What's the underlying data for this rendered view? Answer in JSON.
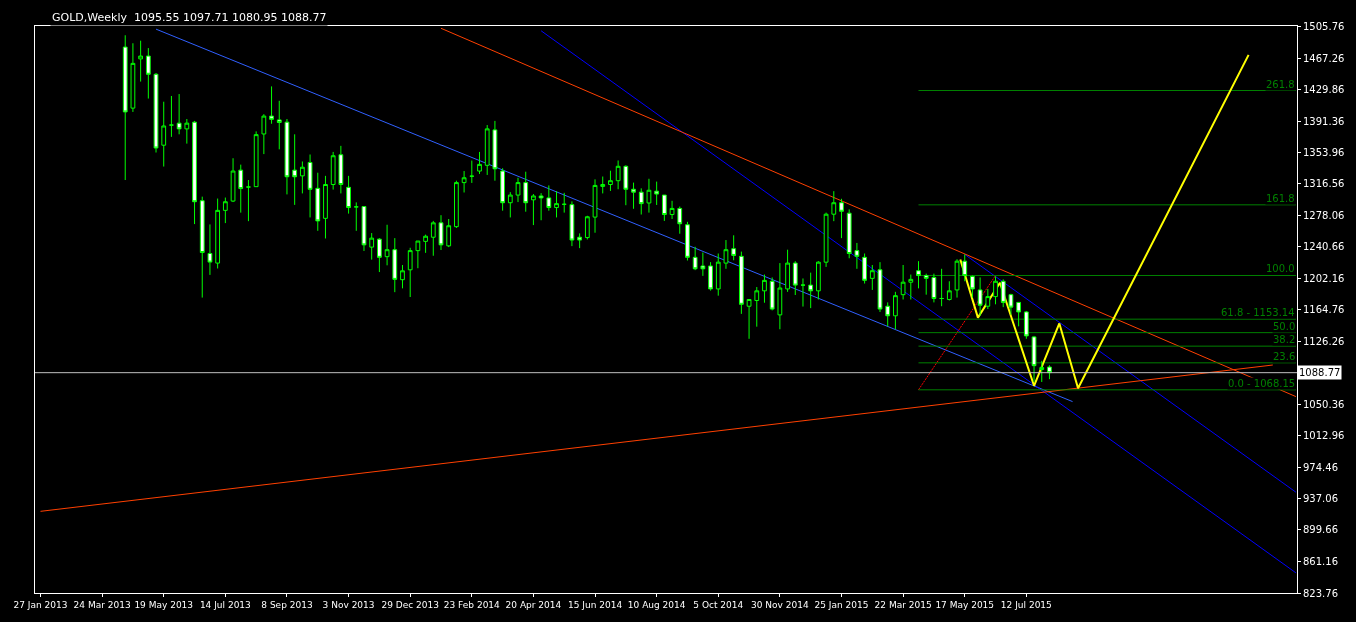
{
  "chart_data": {
    "type": "candlestick",
    "title": "GOLD,Weekly  1095.55 1097.71 1080.95 1088.77",
    "color": "#00ff00",
    "x": [
      "2013-04-14",
      "2013-04-21",
      "2013-04-28",
      "2013-05-05",
      "2013-05-12",
      "2013-05-19",
      "2013-05-26",
      "2013-06-02",
      "2013-06-09",
      "2013-06-16",
      "2013-06-23",
      "2013-06-30",
      "2013-07-07",
      "2013-07-14",
      "2013-07-21",
      "2013-07-28",
      "2013-08-04",
      "2013-08-11",
      "2013-08-18",
      "2013-08-25",
      "2013-09-01",
      "2013-09-08",
      "2013-09-15",
      "2013-09-22",
      "2013-09-29",
      "2013-10-06",
      "2013-10-13",
      "2013-10-20",
      "2013-10-27",
      "2013-11-03",
      "2013-11-10",
      "2013-11-17",
      "2013-11-24",
      "2013-12-01",
      "2013-12-08",
      "2013-12-15",
      "2013-12-22",
      "2013-12-29",
      "2014-01-05",
      "2014-01-12",
      "2014-01-19",
      "2014-01-26",
      "2014-02-02",
      "2014-02-09",
      "2014-02-16",
      "2014-02-23",
      "2014-03-02",
      "2014-03-09",
      "2014-03-16",
      "2014-03-23",
      "2014-03-30",
      "2014-04-06",
      "2014-04-13",
      "2014-04-20",
      "2014-04-27",
      "2014-05-04",
      "2014-05-11",
      "2014-05-18",
      "2014-05-25",
      "2014-06-01",
      "2014-06-08",
      "2014-06-15",
      "2014-06-22",
      "2014-06-29",
      "2014-07-06",
      "2014-07-13",
      "2014-07-20",
      "2014-07-27",
      "2014-08-03",
      "2014-08-10",
      "2014-08-17",
      "2014-08-24",
      "2014-08-31",
      "2014-09-07",
      "2014-09-14",
      "2014-09-21",
      "2014-09-28",
      "2014-10-05",
      "2014-10-12",
      "2014-10-19",
      "2014-10-26",
      "2014-11-02",
      "2014-11-09",
      "2014-11-16",
      "2014-11-23",
      "2014-11-30",
      "2014-12-07",
      "2014-12-14",
      "2014-12-21",
      "2014-12-28",
      "2015-01-04",
      "2015-01-11",
      "2015-01-18",
      "2015-01-25",
      "2015-02-01",
      "2015-02-08",
      "2015-02-15",
      "2015-02-22",
      "2015-03-01",
      "2015-03-08",
      "2015-03-15",
      "2015-03-22",
      "2015-03-29",
      "2015-04-05",
      "2015-04-12",
      "2015-04-19",
      "2015-04-26",
      "2015-05-03",
      "2015-05-10",
      "2015-05-17",
      "2015-05-24",
      "2015-05-31",
      "2015-06-07",
      "2015-06-14",
      "2015-06-21",
      "2015-06-28",
      "2015-07-05",
      "2015-07-12",
      "2015-07-19",
      "2015-07-26",
      "2015-08-02"
    ],
    "ohlc": [
      [
        1480.4,
        1494.6,
        1320.5,
        1402.4
      ],
      [
        1407,
        1485,
        1402.4,
        1460.8
      ],
      [
        1466.2,
        1488.1,
        1438.9,
        1469.6
      ],
      [
        1469.6,
        1479.2,
        1418.5,
        1447.7
      ],
      [
        1447.7,
        1449.3,
        1353.6,
        1359
      ],
      [
        1362.4,
        1414.7,
        1336.7,
        1385.5
      ],
      [
        1386.6,
        1421.6,
        1372.4,
        1386.6
      ],
      [
        1388.9,
        1423.9,
        1375.5,
        1382
      ],
      [
        1382,
        1393.9,
        1364.3,
        1388.9
      ],
      [
        1390.1,
        1391.6,
        1267.5,
        1294.4
      ],
      [
        1295.6,
        1300.5,
        1179.1,
        1233.3
      ],
      [
        1232.1,
        1267.1,
        1206.4,
        1221.8
      ],
      [
        1220.6,
        1298.2,
        1214.1,
        1284
      ],
      [
        1284,
        1299.4,
        1268.7,
        1294.4
      ],
      [
        1295.2,
        1346.7,
        1294,
        1331.3
      ],
      [
        1332.4,
        1339,
        1281.3,
        1310.2
      ],
      [
        1312.1,
        1320.5,
        1271,
        1312.1
      ],
      [
        1312.5,
        1379,
        1312.5,
        1375.1
      ],
      [
        1375.9,
        1399.7,
        1351.7,
        1397.4
      ],
      [
        1397.4,
        1433.1,
        1388.2,
        1393.5
      ],
      [
        1392.8,
        1415.8,
        1357.4,
        1389.7
      ],
      [
        1390.1,
        1393.9,
        1303.2,
        1324.4
      ],
      [
        1332.4,
        1375.5,
        1290.6,
        1324.4
      ],
      [
        1325.5,
        1342.8,
        1304.4,
        1335.9
      ],
      [
        1341.6,
        1351.2,
        1275.5,
        1309.3
      ],
      [
        1310.5,
        1329.3,
        1259.4,
        1271.3
      ],
      [
        1274.4,
        1325.5,
        1250.2,
        1315.1
      ],
      [
        1315.1,
        1354.3,
        1309,
        1349.7
      ],
      [
        1350.9,
        1361.6,
        1304.4,
        1315.1
      ],
      [
        1311.7,
        1325.5,
        1280.1,
        1287.4
      ],
      [
        1288.2,
        1293.6,
        1259.4,
        1288.2
      ],
      [
        1288.6,
        1288.6,
        1235.2,
        1242.5
      ],
      [
        1239.8,
        1256.7,
        1224.8,
        1250.6
      ],
      [
        1249.4,
        1250.6,
        1209.8,
        1227.5
      ],
      [
        1228.3,
        1266.7,
        1217.9,
        1236.7
      ],
      [
        1236.7,
        1250.6,
        1185.6,
        1201
      ],
      [
        1200.6,
        1218.3,
        1190.2,
        1211.3
      ],
      [
        1212.5,
        1239,
        1179.8,
        1235.6
      ],
      [
        1235.6,
        1247.1,
        1214.4,
        1247.1
      ],
      [
        1246.7,
        1254.8,
        1232.9,
        1252.9
      ],
      [
        1251.7,
        1271.3,
        1229.4,
        1269
      ],
      [
        1269,
        1278.2,
        1236.3,
        1242.5
      ],
      [
        1241.3,
        1273.6,
        1239.8,
        1265.5
      ],
      [
        1264.4,
        1319.7,
        1262.8,
        1317.4
      ],
      [
        1317.4,
        1331.3,
        1305.5,
        1323.2
      ],
      [
        1325.1,
        1343.9,
        1317,
        1325.1
      ],
      [
        1331.3,
        1354.3,
        1327.8,
        1339.3
      ],
      [
        1338.2,
        1386.6,
        1326.6,
        1382
      ],
      [
        1380.8,
        1391.6,
        1319.7,
        1334
      ],
      [
        1331.3,
        1334.7,
        1283.6,
        1293.2
      ],
      [
        1293.2,
        1305.9,
        1275.5,
        1302.4
      ],
      [
        1302.4,
        1323.2,
        1294,
        1317.4
      ],
      [
        1317.4,
        1330.5,
        1282.4,
        1293.2
      ],
      [
        1296.7,
        1303.6,
        1266.3,
        1301.3
      ],
      [
        1301.3,
        1304.7,
        1272.1,
        1299
      ],
      [
        1299,
        1314,
        1283.6,
        1287.4
      ],
      [
        1287.4,
        1307.1,
        1275.5,
        1292.1
      ],
      [
        1291.3,
        1305.1,
        1281.3,
        1291.3
      ],
      [
        1290.9,
        1294.8,
        1241,
        1248.3
      ],
      [
        1251.7,
        1256.3,
        1238.6,
        1248.3
      ],
      [
        1251.3,
        1277.5,
        1249,
        1276.3
      ],
      [
        1275.9,
        1321.3,
        1257.1,
        1314
      ],
      [
        1312.8,
        1324.7,
        1304.4,
        1315.1
      ],
      [
        1315.1,
        1331.7,
        1307.4,
        1319.7
      ],
      [
        1319.7,
        1344,
        1309.4,
        1337
      ],
      [
        1337,
        1338.2,
        1290.2,
        1309.4
      ],
      [
        1309.4,
        1317.4,
        1285.9,
        1305.9
      ],
      [
        1305.9,
        1310.5,
        1279,
        1292.1
      ],
      [
        1292.9,
        1322,
        1281.3,
        1308.2
      ],
      [
        1307.1,
        1318.6,
        1290.5,
        1303.6
      ],
      [
        1302.4,
        1302.4,
        1271.3,
        1279
      ],
      [
        1279,
        1295.5,
        1273.6,
        1286.3
      ],
      [
        1286.3,
        1288.6,
        1255.9,
        1267.9
      ],
      [
        1266.7,
        1270.2,
        1223.7,
        1227.5
      ],
      [
        1227.5,
        1240.2,
        1212.1,
        1213.7
      ],
      [
        1217.1,
        1233.3,
        1205.2,
        1213.7
      ],
      [
        1217.1,
        1221.7,
        1187.5,
        1189.5
      ],
      [
        1189.5,
        1232.1,
        1181.4,
        1221.7
      ],
      [
        1220.6,
        1248.3,
        1213.7,
        1236.7
      ],
      [
        1237.9,
        1254,
        1224,
        1229.8
      ],
      [
        1228.7,
        1234.4,
        1159.5,
        1171
      ],
      [
        1168.7,
        1176.8,
        1129.5,
        1176.8
      ],
      [
        1175.6,
        1191.8,
        1144.1,
        1187.2
      ],
      [
        1187.2,
        1206.8,
        1172.9,
        1199.8
      ],
      [
        1198.7,
        1203.3,
        1163.7,
        1165.3
      ],
      [
        1158.3,
        1220.6,
        1141,
        1190.6
      ],
      [
        1189.5,
        1236.7,
        1186,
        1220.6
      ],
      [
        1220.6,
        1222.9,
        1182.2,
        1194.1
      ],
      [
        1194.1,
        1202.1,
        1168.3,
        1194.1
      ],
      [
        1194.1,
        1209.1,
        1166.4,
        1187.2
      ],
      [
        1187.2,
        1222.9,
        1176.8,
        1221.7
      ],
      [
        1221.7,
        1281.3,
        1216,
        1279.4
      ],
      [
        1279.4,
        1307.1,
        1271,
        1293.2
      ],
      [
        1293.2,
        1297.9,
        1250.6,
        1282.9
      ],
      [
        1280.6,
        1285.2,
        1226.4,
        1232.1
      ],
      [
        1235.6,
        1244.8,
        1213.7,
        1228.7
      ],
      [
        1227.5,
        1232.1,
        1196,
        1199.9
      ],
      [
        1202.2,
        1218.3,
        1188.3,
        1211.4
      ],
      [
        1212.5,
        1221.7,
        1161.8,
        1165.3
      ],
      [
        1168.7,
        1173.3,
        1144.5,
        1157.2
      ],
      [
        1157.2,
        1186,
        1141.1,
        1181.4
      ],
      [
        1182.6,
        1218.3,
        1176.8,
        1197.6
      ],
      [
        1197.6,
        1206.8,
        1176.8,
        1201
      ],
      [
        1211.4,
        1222.9,
        1190.2,
        1205.6
      ],
      [
        1205.6,
        1207.9,
        1182.6,
        1202.2
      ],
      [
        1203.3,
        1207.9,
        1173.3,
        1178
      ],
      [
        1178,
        1213.7,
        1168.7,
        1178
      ],
      [
        1176.8,
        1198.7,
        1175.6,
        1187.2
      ],
      [
        1188.3,
        1225.2,
        1179.1,
        1222.9
      ],
      [
        1222.9,
        1231,
        1198.7,
        1205.6
      ],
      [
        1204.5,
        1205.6,
        1179.1,
        1189.5
      ],
      [
        1188.3,
        1203.3,
        1157.2,
        1169.9
      ],
      [
        1168.7,
        1189.5,
        1165.3,
        1180.3
      ],
      [
        1180.3,
        1204.5,
        1171,
        1198.7
      ],
      [
        1198.7,
        1201,
        1167.6,
        1173.3
      ],
      [
        1182.6,
        1183.7,
        1158.4,
        1167.6
      ],
      [
        1173.3,
        1173.3,
        1144.5,
        1161.8
      ],
      [
        1161.8,
        1163,
        1129.5,
        1133
      ],
      [
        1131.8,
        1133,
        1077.6,
        1097.2
      ],
      [
        1092.6,
        1103,
        1077.6,
        1095
      ],
      [
        1095.55,
        1097.71,
        1080.95,
        1088.77
      ]
    ],
    "series": [
      {
        "type": "line",
        "color": "#3060ff",
        "x": [
          "2013-05-12",
          "2015-08-23"
        ],
        "values": [
          1502,
          1054
        ]
      },
      {
        "type": "line",
        "color": "#0000ff",
        "x": [
          "2014-04-27",
          "2016-03-13"
        ],
        "values": [
          1500,
          848
        ]
      },
      {
        "type": "line",
        "color": "#0000ff",
        "x": [
          "2015-05-17",
          "2016-03-13"
        ],
        "values": [
          1231,
          945
        ]
      },
      {
        "type": "line",
        "color": "#ff4000",
        "x": [
          "2014-01-26",
          "2016-03-13"
        ],
        "values": [
          1503,
          1060
        ]
      },
      {
        "type": "line",
        "color": "#ff4000",
        "x": [
          "2013-01-27",
          "2016-02-21"
        ],
        "values": [
          922,
          1098
        ]
      },
      {
        "type": "line",
        "color": "#ff0000",
        "line_style": "dotted",
        "x": [
          "2015-04-05",
          "2015-06-14"
        ],
        "values": [
          1068.15,
          1205.67
        ]
      },
      {
        "type": "line",
        "color": "#008000",
        "x": [
          "2015-04-05",
          "2016-03-13"
        ],
        "values": [
          1428.18,
          1428.18
        ]
      },
      {
        "type": "line",
        "color": "#008000",
        "x": [
          "2015-04-05",
          "2016-03-13"
        ],
        "values": [
          1290.66,
          1290.66
        ]
      },
      {
        "type": "line",
        "color": "#008000",
        "x": [
          "2015-04-05",
          "2016-03-13"
        ],
        "values": [
          1205.67,
          1205.67
        ]
      },
      {
        "type": "line",
        "color": "#008000",
        "x": [
          "2015-04-05",
          "2016-03-13"
        ],
        "values": [
          1153.14,
          1153.14
        ]
      },
      {
        "type": "line",
        "color": "#008000",
        "x": [
          "2015-04-05",
          "2016-03-13"
        ],
        "values": [
          1136.91,
          1136.91
        ]
      },
      {
        "type": "line",
        "color": "#008000",
        "x": [
          "2015-04-05",
          "2016-03-13"
        ],
        "values": [
          1120.68,
          1120.68
        ]
      },
      {
        "type": "line",
        "color": "#008000",
        "x": [
          "2015-04-05",
          "2016-03-13"
        ],
        "values": [
          1100.6,
          1100.6
        ]
      },
      {
        "type": "line",
        "color": "#008000",
        "x": [
          "2015-04-05",
          "2016-03-13"
        ],
        "values": [
          1068.15,
          1068.15
        ]
      },
      {
        "type": "line",
        "color": "#ffff00",
        "x": [
          "2015-05-13",
          "2015-05-29",
          "2015-06-18",
          "2015-07-19",
          "2015-08-11",
          "2015-08-28",
          "2016-01-30"
        ],
        "values": [
          1225,
          1155,
          1197,
          1073,
          1148,
          1070,
          1471
        ]
      }
    ],
    "ref_lines": [
      {
        "axis": "y",
        "value": 1088.77,
        "label": "1088.77",
        "color": "#c0c0c0"
      }
    ],
    "annotations": [
      {
        "text": "261.8",
        "x": "2016-03-13",
        "y": 1428.18
      },
      {
        "text": "161.8",
        "x": "2016-03-13",
        "y": 1290.66
      },
      {
        "text": "100.0",
        "x": "2016-03-13",
        "y": 1205.67
      },
      {
        "text": "61.8 - 1153.14",
        "x": "2016-03-13",
        "y": 1153.14
      },
      {
        "text": "50.0",
        "x": "2016-03-13",
        "y": 1136.91
      },
      {
        "text": "38.2",
        "x": "2016-03-13",
        "y": 1120.68
      },
      {
        "text": "23.6",
        "x": "2016-03-13",
        "y": 1100.6
      },
      {
        "text": "0.0 - 1068.15",
        "x": "2016-03-13",
        "y": 1068.15
      }
    ],
    "xlim": [
      "2013-01-22",
      "2016-03-14"
    ],
    "xticks": [
      {
        "value": "2013-01-27",
        "label": "27 Jan 2013"
      },
      {
        "value": "2013-03-24",
        "label": "24 Mar 2013"
      },
      {
        "value": "2013-05-19",
        "label": "19 May 2013"
      },
      {
        "value": "2013-07-14",
        "label": "14 Jul 2013"
      },
      {
        "value": "2013-09-08",
        "label": "8 Sep 2013"
      },
      {
        "value": "2013-11-03",
        "label": "3 Nov 2013"
      },
      {
        "value": "2013-12-29",
        "label": "29 Dec 2013"
      },
      {
        "value": "2014-02-23",
        "label": "23 Feb 2014"
      },
      {
        "value": "2014-04-20",
        "label": "20 Apr 2014"
      },
      {
        "value": "2014-06-15",
        "label": "15 Jun 2014"
      },
      {
        "value": "2014-08-10",
        "label": "10 Aug 2014"
      },
      {
        "value": "2014-10-05",
        "label": "5 Oct 2014"
      },
      {
        "value": "2014-11-30",
        "label": "30 Nov 2014"
      },
      {
        "value": "2015-01-25",
        "label": "25 Jan 2015"
      },
      {
        "value": "2015-03-22",
        "label": "22 Mar 2015"
      },
      {
        "value": "2015-05-17",
        "label": "17 May 2015"
      },
      {
        "value": "2015-07-12",
        "label": "12 Jul 2015"
      }
    ],
    "ylim": [
      823.76,
      1505.76
    ],
    "yticks": [
      823.76,
      861.16,
      899.66,
      937.06,
      974.46,
      1012.96,
      1050.36,
      1126.26,
      1164.76,
      1202.16,
      1240.66,
      1278.06,
      1316.56,
      1353.96,
      1391.36,
      1429.86,
      1467.26,
      1505.76
    ],
    "grid": false
  }
}
